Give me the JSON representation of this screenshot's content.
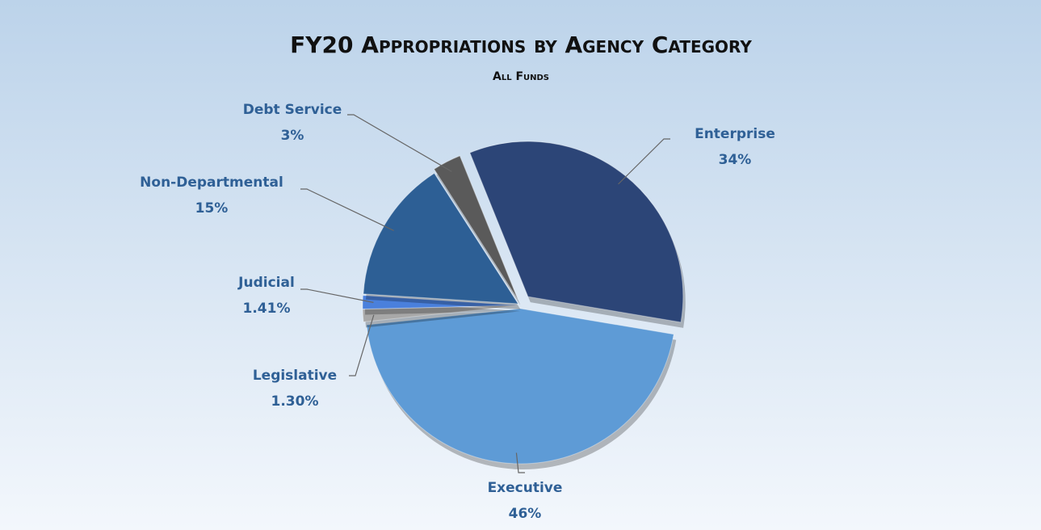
{
  "chart_data": {
    "type": "pie",
    "title": "FY20 Appropriations by Agency Category",
    "subtitle": "All Funds",
    "categories": [
      "Enterprise",
      "Executive",
      "Legislative",
      "Judicial",
      "Non-Departmental",
      "Debt Service"
    ],
    "values": [
      34,
      46,
      1.3,
      1.41,
      15,
      3
    ],
    "value_labels": [
      "34%",
      "46%",
      "1.30%",
      "1.41%",
      "15%",
      "3%"
    ],
    "colors": [
      "#2c4577",
      "#5e9bd6",
      "#a8a8a8",
      "#4a80dc",
      "#2d5f95",
      "#5a5a5a"
    ]
  }
}
